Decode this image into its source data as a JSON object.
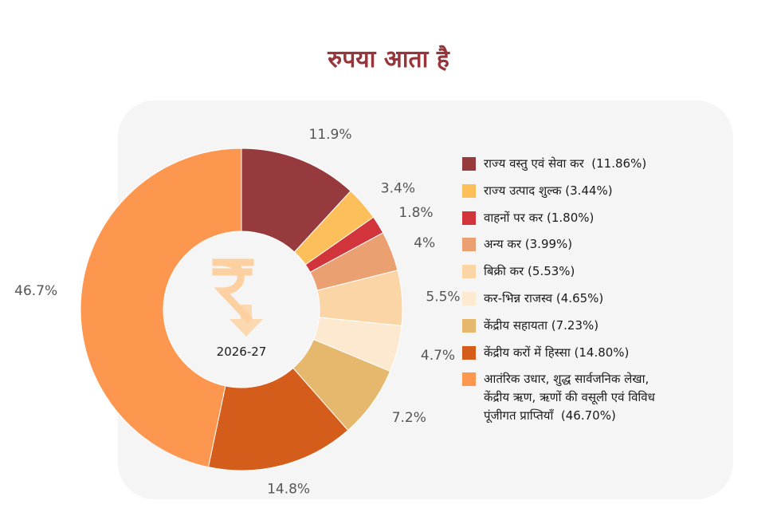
{
  "title": "रुपया आता है",
  "chart_data": {
    "type": "pie",
    "center_label": "2026-27",
    "center_icon": "rupee-down-arrow-icon",
    "slices": [
      {
        "label": "राज्य वस्तु एवं सेवा कर  (11.86%)",
        "value": 11.86,
        "data_label": "11.9%",
        "color": "#963a3d"
      },
      {
        "label": "राज्य उत्पाद शुल्क (3.44%)",
        "value": 3.44,
        "data_label": "3.4%",
        "color": "#fdbf5a"
      },
      {
        "label": "वाहनों पर कर (1.80%)",
        "value": 1.8,
        "data_label": "1.8%",
        "color": "#d1343a"
      },
      {
        "label": "अन्य कर (3.99%)",
        "value": 3.99,
        "data_label": "4%",
        "color": "#eba072"
      },
      {
        "label": "बिक्री कर (5.53%)",
        "value": 5.53,
        "data_label": "5.5%",
        "color": "#fcd5a6"
      },
      {
        "label": "कर-भिन्न राजस्व (4.65%)",
        "value": 4.65,
        "data_label": "4.7%",
        "color": "#fde9d0"
      },
      {
        "label": "केंद्रीय सहायता (7.23%)",
        "value": 7.23,
        "data_label": "7.2%",
        "color": "#e5b86e"
      },
      {
        "label": "केंद्रीय करों में हिस्सा (14.80%)",
        "value": 14.8,
        "data_label": "14.8%",
        "color": "#d55d1b"
      },
      {
        "label": "आतंरिक उधार, शुद्ध सार्वजनिक लेखा,\nकेंद्रीय ऋण, ऋणों की वसूली एवं विविध\nपूंजीगत प्राप्तियाँ  (46.70%)",
        "value": 46.7,
        "data_label": "46.7%",
        "color": "#fd9750"
      }
    ],
    "legend_position": "right"
  }
}
